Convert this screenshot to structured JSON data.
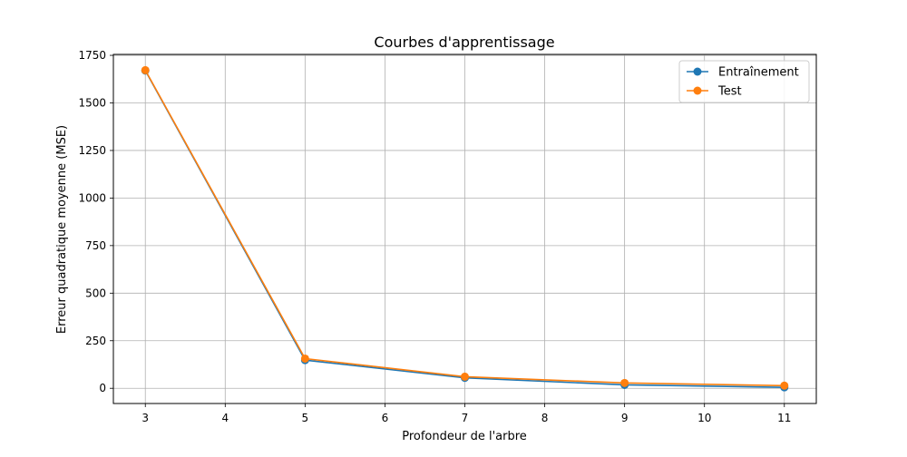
{
  "colors": {
    "train": "#1f77b4",
    "test": "#ff7f0e",
    "grid": "#b0b0b0",
    "axes": "#000000"
  },
  "chart_data": {
    "type": "line",
    "title": "Courbes d'apprentissage",
    "xlabel": "Profondeur de l'arbre",
    "ylabel": "Erreur quadratique moyenne (MSE)",
    "x": [
      3,
      5,
      7,
      9,
      11
    ],
    "xlim": [
      2.6,
      11.4
    ],
    "ylim": [
      -80,
      1755
    ],
    "xticks": [
      3,
      4,
      5,
      6,
      7,
      8,
      9,
      10,
      11
    ],
    "yticks": [
      0,
      250,
      500,
      750,
      1000,
      1250,
      1500,
      1750
    ],
    "grid": true,
    "legend_position": "top-right",
    "marker": "circle",
    "series": [
      {
        "name": "Entraînement",
        "color_key": "train",
        "values": [
          1670,
          148,
          55,
          18,
          5
        ]
      },
      {
        "name": "Test",
        "color_key": "test",
        "values": [
          1672,
          156,
          61,
          28,
          14
        ]
      }
    ]
  }
}
